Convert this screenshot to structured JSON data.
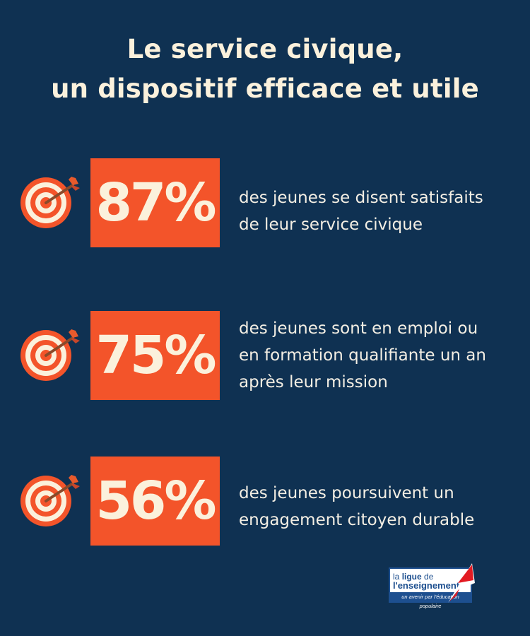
{
  "title": {
    "line1": "Le service civique,",
    "line2": "un dispositif efficace et utile"
  },
  "stats": [
    {
      "value": "87%",
      "fraction": 0.87,
      "lines": [
        "des jeunes se disent satisfaits",
        "de leur service civique"
      ],
      "icon": "target-arrow-icon"
    },
    {
      "value": "75%",
      "fraction": 0.75,
      "lines": [
        "des jeunes sont en emploi ou",
        "en formation qualifiante un an",
        "après leur mission"
      ],
      "icon": "target-arrow-icon"
    },
    {
      "value": "56%",
      "fraction": 0.56,
      "lines": [
        "des jeunes poursuivent un",
        "engagement citoyen durable"
      ],
      "icon": "target-arrow-icon"
    }
  ],
  "logo": {
    "line1_prefix": "la ",
    "line1_bold": "ligue",
    "line1_suffix": " de",
    "line2": "l'enseignement",
    "tagline": "un avenir par l'éducation populaire"
  },
  "colors": {
    "background": "#0f3152",
    "accent": "#f3542a",
    "text": "#fbf1dc"
  }
}
